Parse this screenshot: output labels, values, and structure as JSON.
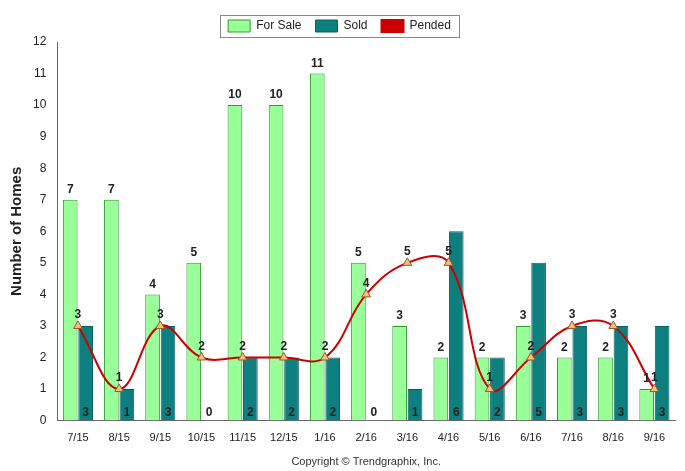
{
  "chart_data": {
    "type": "bar",
    "categories": [
      "7/15",
      "8/15",
      "9/15",
      "10/15",
      "11/15",
      "12/15",
      "1/16",
      "2/16",
      "3/16",
      "4/16",
      "5/16",
      "6/16",
      "7/16",
      "8/16",
      "9/16"
    ],
    "series": [
      {
        "name": "For Sale",
        "type": "bar",
        "color": "#99ff99",
        "values": [
          7,
          7,
          4,
          5,
          10,
          10,
          11,
          5,
          3,
          2,
          2,
          3,
          2,
          2,
          1
        ]
      },
      {
        "name": "Sold",
        "type": "bar",
        "color": "#0e7f7f",
        "values": [
          3,
          1,
          3,
          0,
          2,
          2,
          2,
          0,
          1,
          6,
          2,
          5,
          3,
          3,
          3
        ]
      },
      {
        "name": "Pended",
        "type": "line",
        "color": "#cc0000",
        "marker": "triangle",
        "line_style": "solid",
        "values": [
          3,
          1,
          3,
          2,
          2,
          2,
          2,
          4,
          5,
          5,
          1,
          2,
          3,
          3,
          1
        ]
      }
    ],
    "y_label": "Number of Homes",
    "x_label": "Copyright © Trendgraphix, Inc.",
    "ylim": [
      0,
      12
    ],
    "yticks": [
      0,
      1,
      2,
      3,
      4,
      5,
      6,
      7,
      8,
      9,
      10,
      11,
      12
    ],
    "grid": false,
    "legend": "top",
    "data_labels": true
  }
}
